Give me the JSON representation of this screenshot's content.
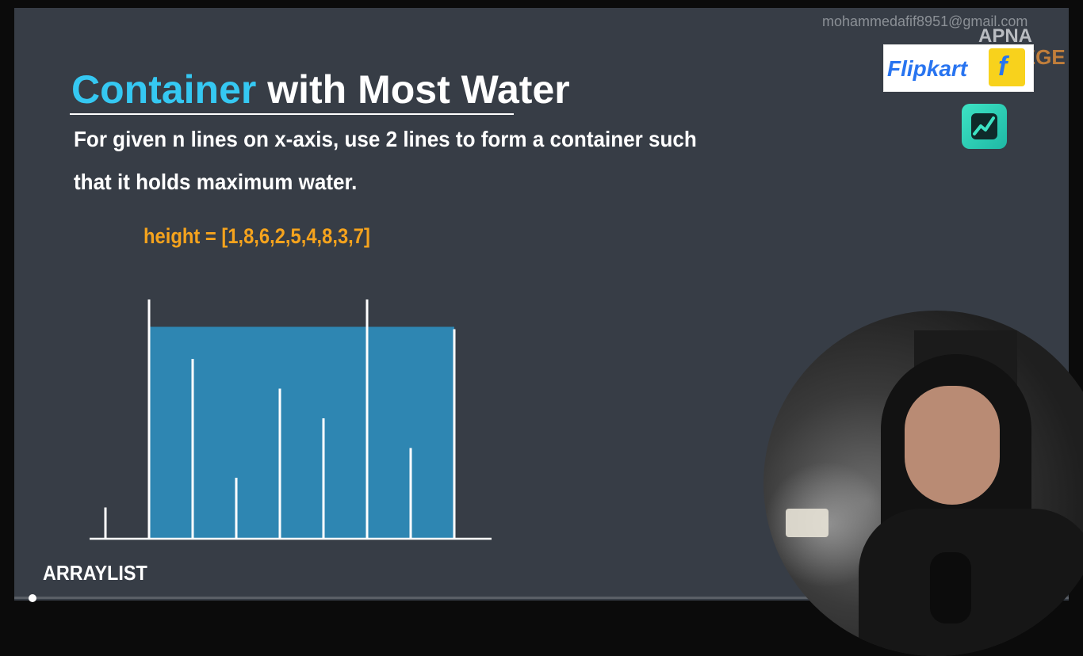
{
  "overlay": {
    "watermark_email": "mohammedafif8951@gmail.com",
    "brand_top": "APNA",
    "brand_bottom": "COLLEGE"
  },
  "sponsor": {
    "flipkart_label": "Flipkart",
    "flipkart_bag_letter": "f"
  },
  "slide": {
    "title_accent": "Container",
    "title_rest": " with Most Water",
    "description_line1": "For given n lines on x-axis, use 2 lines to form a container such",
    "description_line2": "that it holds maximum water.",
    "height_label": "height = [1,8,6,2,5,4,8,3,7]",
    "section_label": "ARRAYLIST"
  },
  "colors": {
    "slide_bg": "#373d46",
    "accent_cyan": "#35c8f2",
    "accent_orange": "#f5a31d",
    "water_fill": "#2e86b2",
    "line_white": "#ffffff"
  },
  "chart_data": {
    "type": "bar",
    "values": [
      1,
      8,
      6,
      2,
      5,
      4,
      8,
      3,
      7
    ],
    "highlight_container": {
      "left_index": 1,
      "right_index": 8,
      "water_level": 7
    },
    "ylim": [
      0,
      8
    ]
  },
  "video": {
    "progress": 0.01
  }
}
